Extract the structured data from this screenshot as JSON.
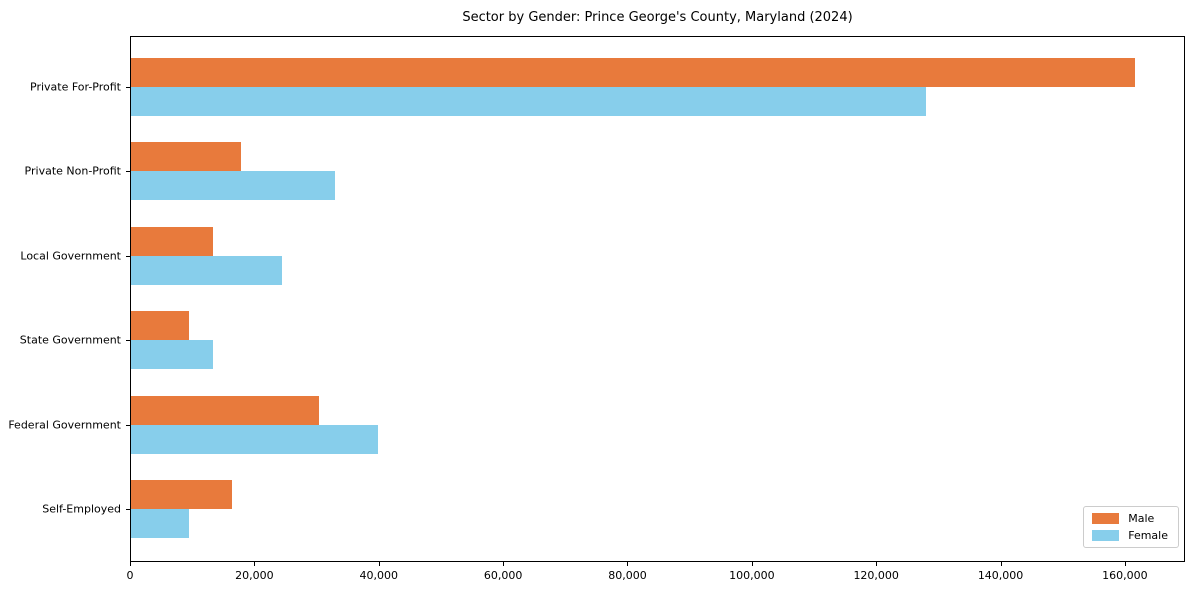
{
  "chart_data": {
    "type": "bar",
    "orientation": "horizontal",
    "title": "Sector by Gender: Prince George's County, Maryland (2024)",
    "categories": [
      "Private For-Profit",
      "Private Non-Profit",
      "Local Government",
      "State Government",
      "Federal Government",
      "Self-Employed"
    ],
    "series": [
      {
        "name": "Male",
        "color": "#e87a3c",
        "values": [
          161800,
          17700,
          13200,
          9300,
          30300,
          16300
        ]
      },
      {
        "name": "Female",
        "color": "#87ceeb",
        "values": [
          128100,
          32800,
          24300,
          13200,
          39800,
          9300
        ]
      }
    ],
    "xlabel": "",
    "ylabel": "",
    "xlim": [
      0,
      169660
    ],
    "x_ticks": [
      0,
      20000,
      40000,
      60000,
      80000,
      100000,
      120000,
      140000,
      160000
    ],
    "x_tick_labels": [
      "0",
      "20,000",
      "40,000",
      "60,000",
      "80,000",
      "100,000",
      "120,000",
      "140,000",
      "160,000"
    ],
    "legend_position": "lower right",
    "grid": false,
    "background_color": "#ffffff",
    "axis_color": "#000000"
  }
}
